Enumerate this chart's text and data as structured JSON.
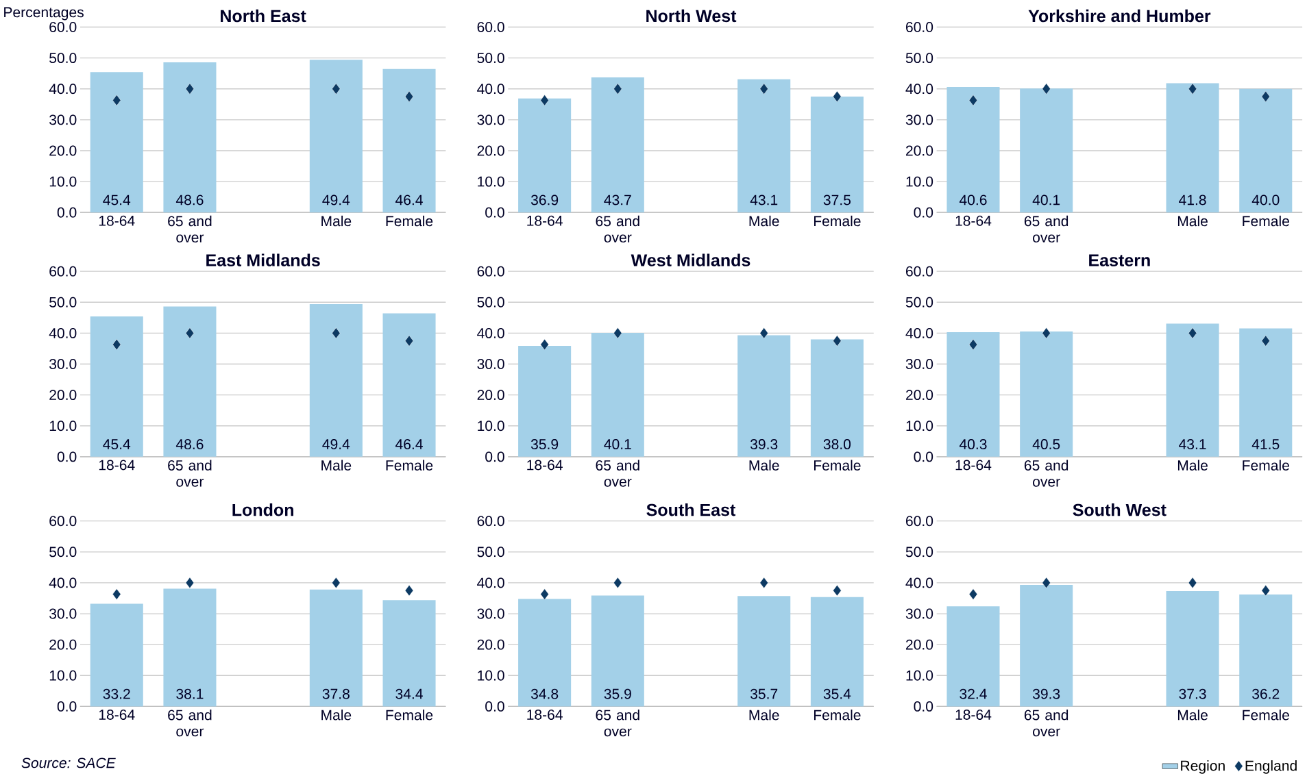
{
  "chart_data": [
    {
      "type": "bar",
      "title": "North East",
      "ylabel": "Percentages",
      "categories": [
        "18-64",
        "65 and over",
        null,
        "Male",
        "Female"
      ],
      "series": [
        {
          "color": "#a3d0e8",
          "values": [
            45.4,
            48.6,
            null,
            49.4,
            46.4
          ],
          "value_labels": [
            "45.4",
            "48.6",
            null,
            "49.4",
            "46.4"
          ]
        },
        {
          "type": "scatter",
          "color": "#0d3a63",
          "marker": "diamond",
          "values": [
            36.3,
            40.0,
            null,
            40.0,
            37.5
          ]
        }
      ],
      "ylim": [
        0,
        60
      ],
      "yticks": [
        {
          "value": 0,
          "label": "0.0"
        },
        {
          "value": 10,
          "label": "10.0"
        },
        {
          "value": 20,
          "label": "20.0"
        },
        {
          "value": 30,
          "label": "30.0"
        },
        {
          "value": 40,
          "label": "40.0"
        },
        {
          "value": 50,
          "label": "50.0"
        },
        {
          "value": 60,
          "label": "60.0"
        }
      ],
      "grid": "y"
    },
    {
      "type": "bar",
      "title": "North West",
      "categories": [
        "18-64",
        "65 and over",
        null,
        "Male",
        "Female"
      ],
      "series": [
        {
          "color": "#a3d0e8",
          "values": [
            36.9,
            43.7,
            null,
            43.1,
            37.5
          ],
          "value_labels": [
            "36.9",
            "43.7",
            null,
            "43.1",
            "37.5"
          ]
        },
        {
          "type": "scatter",
          "color": "#0d3a63",
          "marker": "diamond",
          "values": [
            36.3,
            40.0,
            null,
            40.0,
            37.5
          ]
        }
      ],
      "ylim": [
        0,
        60
      ],
      "yticks": [
        {
          "value": 0,
          "label": "0.0"
        },
        {
          "value": 10,
          "label": "10.0"
        },
        {
          "value": 20,
          "label": "20.0"
        },
        {
          "value": 30,
          "label": "30.0"
        },
        {
          "value": 40,
          "label": "40.0"
        },
        {
          "value": 50,
          "label": "50.0"
        },
        {
          "value": 60,
          "label": "60.0"
        }
      ],
      "grid": "y"
    },
    {
      "type": "bar",
      "title": "Yorkshire and Humber",
      "categories": [
        "18-64",
        "65 and over",
        null,
        "Male",
        "Female"
      ],
      "series": [
        {
          "color": "#a3d0e8",
          "values": [
            40.6,
            40.1,
            null,
            41.8,
            40.0
          ],
          "value_labels": [
            "40.6",
            "40.1",
            null,
            "41.8",
            "40.0"
          ]
        },
        {
          "type": "scatter",
          "color": "#0d3a63",
          "marker": "diamond",
          "values": [
            36.3,
            40.0,
            null,
            40.0,
            37.5
          ]
        }
      ],
      "ylim": [
        0,
        60
      ],
      "yticks": [
        {
          "value": 0,
          "label": "0.0"
        },
        {
          "value": 10,
          "label": "10.0"
        },
        {
          "value": 20,
          "label": "20.0"
        },
        {
          "value": 30,
          "label": "30.0"
        },
        {
          "value": 40,
          "label": "40.0"
        },
        {
          "value": 50,
          "label": "50.0"
        },
        {
          "value": 60,
          "label": "60.0"
        }
      ],
      "grid": "y"
    },
    {
      "type": "bar",
      "title": "East Midlands",
      "categories": [
        "18-64",
        "65 and over",
        null,
        "Male",
        "Female"
      ],
      "series": [
        {
          "color": "#a3d0e8",
          "values": [
            45.4,
            48.6,
            null,
            49.4,
            46.4
          ],
          "value_labels": [
            "45.4",
            "48.6",
            null,
            "49.4",
            "46.4"
          ]
        },
        {
          "type": "scatter",
          "color": "#0d3a63",
          "marker": "diamond",
          "values": [
            36.3,
            40.0,
            null,
            40.0,
            37.5
          ]
        }
      ],
      "ylim": [
        0,
        60
      ],
      "yticks": [
        {
          "value": 0,
          "label": "0.0"
        },
        {
          "value": 10,
          "label": "10.0"
        },
        {
          "value": 20,
          "label": "20.0"
        },
        {
          "value": 30,
          "label": "30.0"
        },
        {
          "value": 40,
          "label": "40.0"
        },
        {
          "value": 50,
          "label": "50.0"
        },
        {
          "value": 60,
          "label": "60.0"
        }
      ],
      "grid": "y"
    },
    {
      "type": "bar",
      "title": "West Midlands",
      "categories": [
        "18-64",
        "65 and over",
        null,
        "Male",
        "Female"
      ],
      "series": [
        {
          "color": "#a3d0e8",
          "values": [
            35.9,
            40.1,
            null,
            39.3,
            38.0
          ],
          "value_labels": [
            "35.9",
            "40.1",
            null,
            "39.3",
            "38.0"
          ]
        },
        {
          "type": "scatter",
          "color": "#0d3a63",
          "marker": "diamond",
          "values": [
            36.3,
            40.0,
            null,
            40.0,
            37.5
          ]
        }
      ],
      "ylim": [
        0,
        60
      ],
      "yticks": [
        {
          "value": 0,
          "label": "0.0"
        },
        {
          "value": 10,
          "label": "10.0"
        },
        {
          "value": 20,
          "label": "20.0"
        },
        {
          "value": 30,
          "label": "30.0"
        },
        {
          "value": 40,
          "label": "40.0"
        },
        {
          "value": 50,
          "label": "50.0"
        },
        {
          "value": 60,
          "label": "60.0"
        }
      ],
      "grid": "y"
    },
    {
      "type": "bar",
      "title": "Eastern",
      "categories": [
        "18-64",
        "65 and over",
        null,
        "Male",
        "Female"
      ],
      "series": [
        {
          "color": "#a3d0e8",
          "values": [
            40.3,
            40.5,
            null,
            43.1,
            41.5
          ],
          "value_labels": [
            "40.3",
            "40.5",
            null,
            "43.1",
            "41.5"
          ]
        },
        {
          "type": "scatter",
          "color": "#0d3a63",
          "marker": "diamond",
          "values": [
            36.3,
            40.0,
            null,
            40.0,
            37.5
          ]
        }
      ],
      "ylim": [
        0,
        60
      ],
      "yticks": [
        {
          "value": 0,
          "label": "0.0"
        },
        {
          "value": 10,
          "label": "10.0"
        },
        {
          "value": 20,
          "label": "20.0"
        },
        {
          "value": 30,
          "label": "30.0"
        },
        {
          "value": 40,
          "label": "40.0"
        },
        {
          "value": 50,
          "label": "50.0"
        },
        {
          "value": 60,
          "label": "60.0"
        }
      ],
      "grid": "y"
    },
    {
      "type": "bar",
      "title": "London",
      "annotations": [
        "Source: SACE"
      ],
      "categories": [
        "18-64",
        "65 and over",
        null,
        "Male",
        "Female"
      ],
      "series": [
        {
          "color": "#a3d0e8",
          "values": [
            33.2,
            38.1,
            null,
            37.8,
            34.4
          ],
          "value_labels": [
            "33.2",
            "38.1",
            null,
            "37.8",
            "34.4"
          ]
        },
        {
          "type": "scatter",
          "color": "#0d3a63",
          "marker": "diamond",
          "values": [
            36.3,
            40.0,
            null,
            40.0,
            37.5
          ]
        }
      ],
      "ylim": [
        0,
        60
      ],
      "yticks": [
        {
          "value": 0,
          "label": "0.0"
        },
        {
          "value": 10,
          "label": "10.0"
        },
        {
          "value": 20,
          "label": "20.0"
        },
        {
          "value": 30,
          "label": "30.0"
        },
        {
          "value": 40,
          "label": "40.0"
        },
        {
          "value": 50,
          "label": "50.0"
        },
        {
          "value": 60,
          "label": "60.0"
        }
      ],
      "grid": "y"
    },
    {
      "type": "bar",
      "title": "South East",
      "categories": [
        "18-64",
        "65 and over",
        null,
        "Male",
        "Female"
      ],
      "series": [
        {
          "color": "#a3d0e8",
          "values": [
            34.8,
            35.9,
            null,
            35.7,
            35.4
          ],
          "value_labels": [
            "34.8",
            "35.9",
            null,
            "35.7",
            "35.4"
          ]
        },
        {
          "type": "scatter",
          "color": "#0d3a63",
          "marker": "diamond",
          "values": [
            36.3,
            40.0,
            null,
            40.0,
            37.5
          ]
        }
      ],
      "ylim": [
        0,
        60
      ],
      "yticks": [
        {
          "value": 0,
          "label": "0.0"
        },
        {
          "value": 10,
          "label": "10.0"
        },
        {
          "value": 20,
          "label": "20.0"
        },
        {
          "value": 30,
          "label": "30.0"
        },
        {
          "value": 40,
          "label": "40.0"
        },
        {
          "value": 50,
          "label": "50.0"
        },
        {
          "value": 60,
          "label": "60.0"
        }
      ],
      "grid": "y"
    },
    {
      "type": "bar",
      "title": "South West",
      "categories": [
        "18-64",
        "65 and over",
        null,
        "Male",
        "Female"
      ],
      "series": [
        {
          "name": "Region",
          "color": "#a3d0e8",
          "values": [
            32.4,
            39.3,
            null,
            37.3,
            36.2
          ],
          "value_labels": [
            "32.4",
            "39.3",
            null,
            "37.3",
            "36.2"
          ]
        },
        {
          "name": "England",
          "type": "scatter",
          "color": "#0d3a63",
          "marker": "diamond",
          "values": [
            36.3,
            40.0,
            null,
            40.0,
            37.5
          ]
        }
      ],
      "ylim": [
        0,
        60
      ],
      "yticks": [
        {
          "value": 0,
          "label": "0.0"
        },
        {
          "value": 10,
          "label": "10.0"
        },
        {
          "value": 20,
          "label": "20.0"
        },
        {
          "value": 30,
          "label": "30.0"
        },
        {
          "value": 40,
          "label": "40.0"
        },
        {
          "value": 50,
          "label": "50.0"
        },
        {
          "value": 60,
          "label": "60.0"
        }
      ],
      "grid": "y",
      "legend": "bottom right"
    }
  ]
}
